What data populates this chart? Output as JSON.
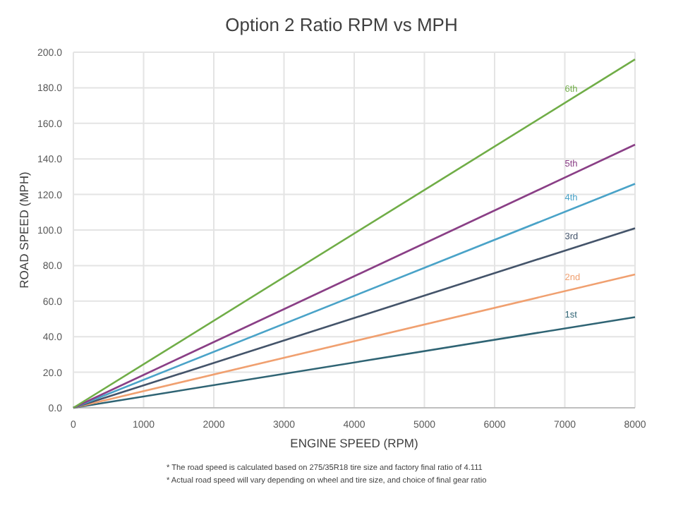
{
  "chart_data": {
    "type": "line",
    "title": "Option 2 Ratio RPM vs MPH",
    "xlabel": "ENGINE SPEED (RPM)",
    "ylabel": "ROAD SPEED (MPH)",
    "x": [
      0,
      8000
    ],
    "series": [
      {
        "name": "1st",
        "color": "#2f6474",
        "values": [
          0,
          51
        ]
      },
      {
        "name": "2nd",
        "color": "#f0a070",
        "values": [
          0,
          75
        ]
      },
      {
        "name": "3rd",
        "color": "#44546a",
        "values": [
          0,
          101
        ]
      },
      {
        "name": "4th",
        "color": "#4aa3c8",
        "values": [
          0,
          126
        ]
      },
      {
        "name": "5th",
        "color": "#8a3f86",
        "values": [
          0,
          148
        ]
      },
      {
        "name": "6th",
        "color": "#70ad47",
        "values": [
          0,
          196
        ]
      }
    ],
    "xlim": [
      0,
      8000
    ],
    "xticks": [
      0,
      1000,
      2000,
      3000,
      4000,
      5000,
      6000,
      7000,
      8000
    ],
    "ylim": [
      0,
      200
    ],
    "yticks": [
      {
        "value": 0,
        "label": "0.0"
      },
      {
        "value": 20,
        "label": "20.0"
      },
      {
        "value": 40,
        "label": "40.0"
      },
      {
        "value": 60,
        "label": "60.0"
      },
      {
        "value": 80,
        "label": "80.0"
      },
      {
        "value": 100,
        "label": "100.0"
      },
      {
        "value": 120,
        "label": "120.0"
      },
      {
        "value": 140,
        "label": "140.0"
      },
      {
        "value": 160,
        "label": "160.0"
      },
      {
        "value": 180,
        "label": "180.0"
      },
      {
        "value": 200,
        "label": "200.0"
      }
    ],
    "grid": true,
    "annotations": [
      "* The road speed is calculated based on 275/35R18 tire size and factory final ratio of 4.111",
      "* Actual road speed will vary depending on wheel and tire size, and choice of final gear ratio"
    ]
  }
}
